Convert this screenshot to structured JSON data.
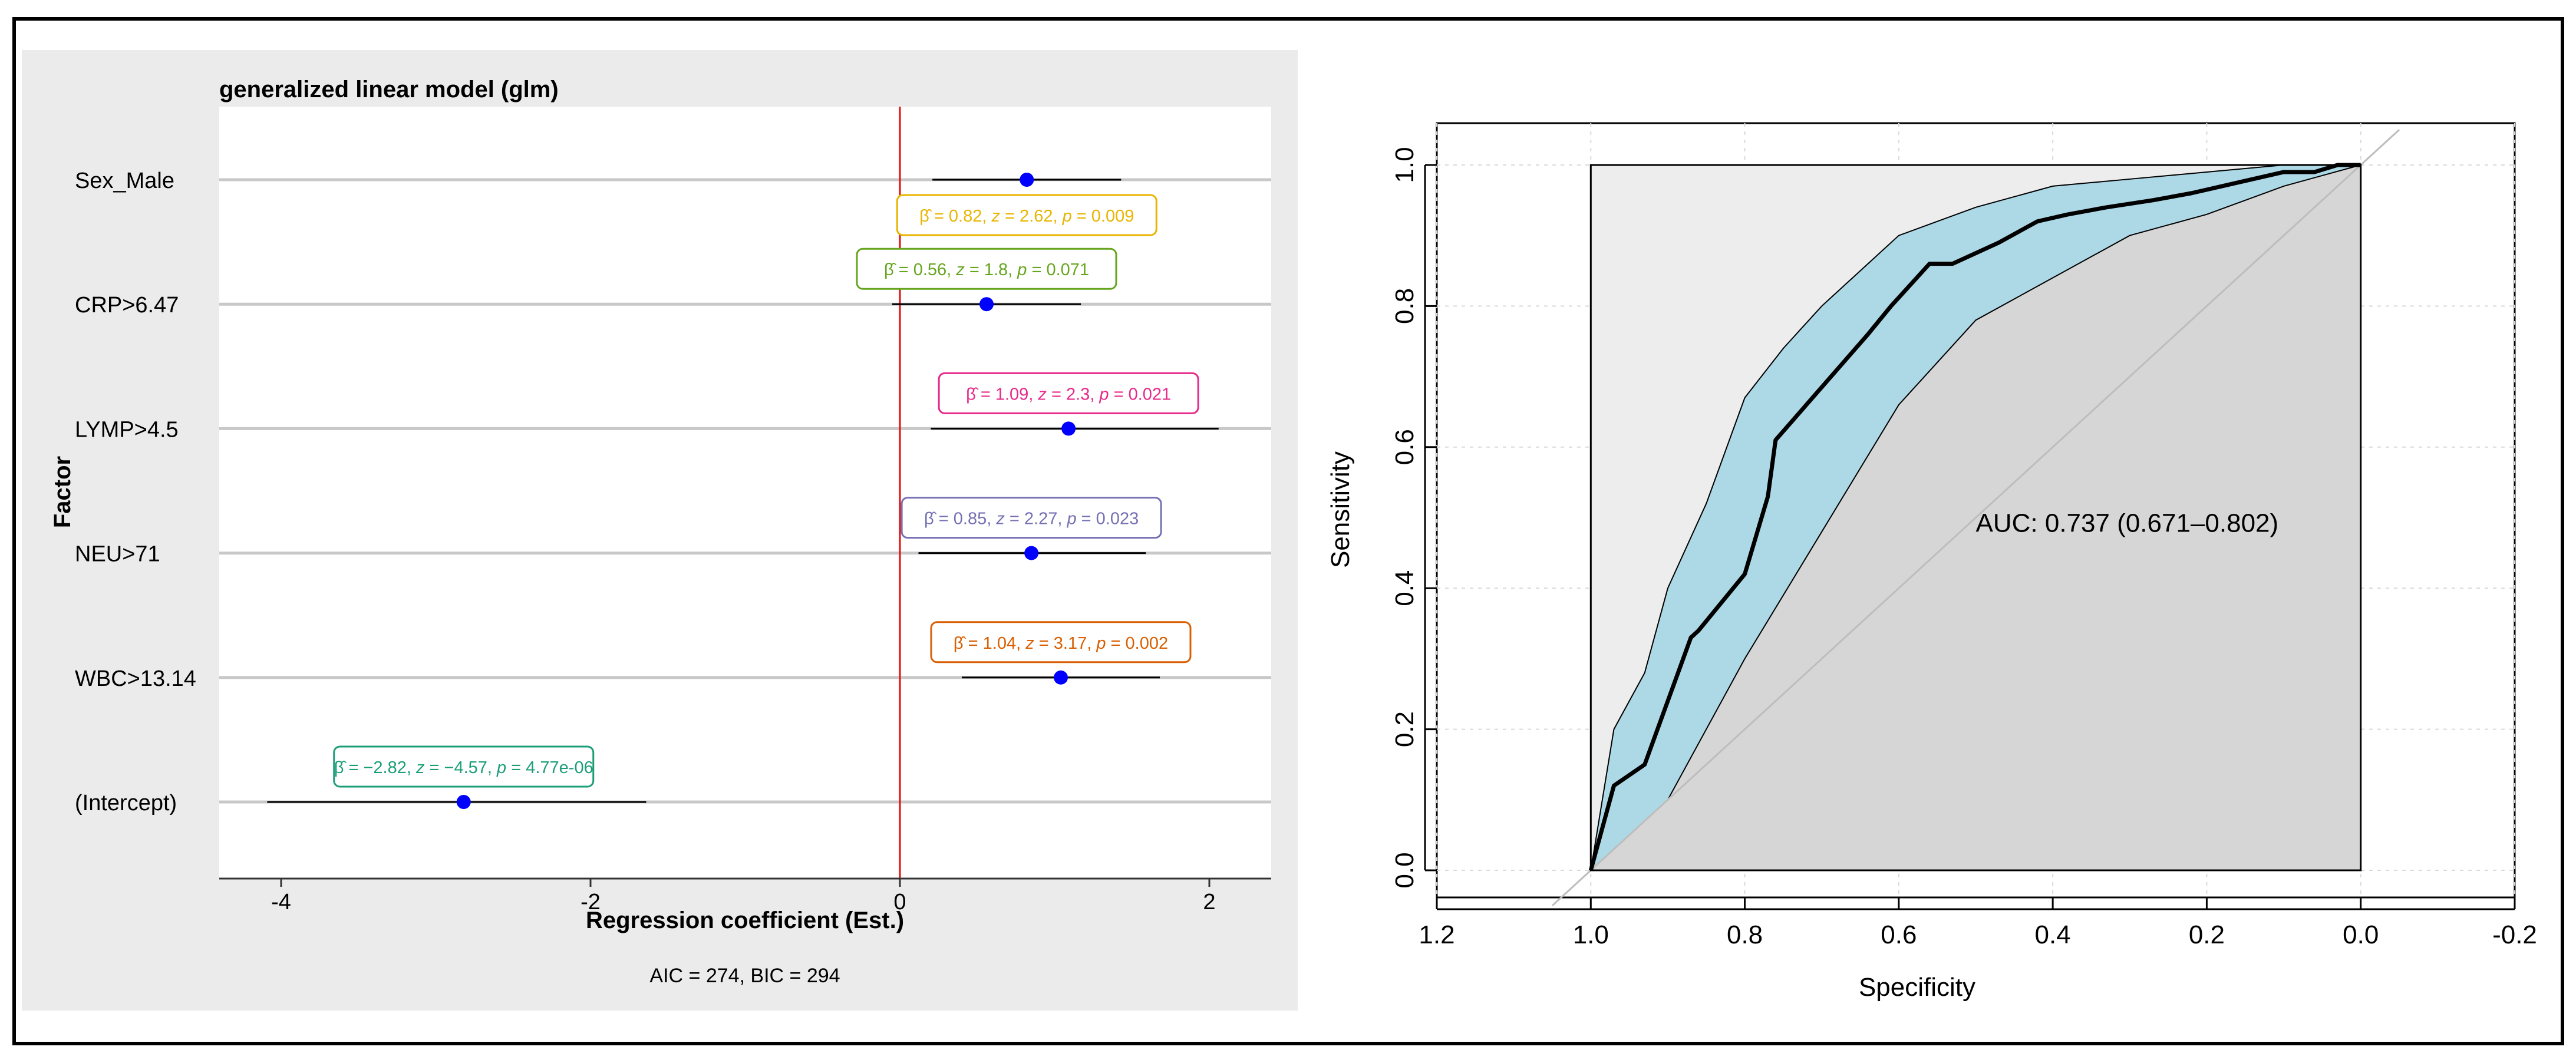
{
  "chart_data": [
    {
      "type": "forest",
      "title": "generalized linear model (glm)",
      "xlabel": "Regression coefficient (Est.)",
      "ylabel": "Factor",
      "caption": "AIC = 274, BIC = 294",
      "xlim": [
        -4.4,
        2.4
      ],
      "xticks": [
        -4,
        -2,
        0,
        2
      ],
      "xtick_labels": [
        "-4",
        "-2",
        "0",
        "2"
      ],
      "reference_line": 0,
      "terms": [
        {
          "label": "Sex_Male",
          "estimate": 0.82,
          "ci_low": 0.21,
          "ci_high": 1.43,
          "beta": "0.82",
          "z": "2.62",
          "p": "0.009",
          "color": "#e8b500",
          "label_pos": "below"
        },
        {
          "label": "CRP>6.47",
          "estimate": 0.56,
          "ci_low": -0.05,
          "ci_high": 1.17,
          "beta": "0.56",
          "z": "1.8",
          "p": "0.071",
          "color": "#66a61e",
          "label_pos": "above"
        },
        {
          "label": "LYMP>4.5",
          "estimate": 1.09,
          "ci_low": 0.2,
          "ci_high": 2.06,
          "beta": "1.09",
          "z": "2.3",
          "p": "0.021",
          "color": "#e7298a",
          "label_pos": "above"
        },
        {
          "label": "NEU>71",
          "estimate": 0.85,
          "ci_low": 0.12,
          "ci_high": 1.59,
          "beta": "0.85",
          "z": "2.27",
          "p": "0.023",
          "color": "#7570b3",
          "label_pos": "above"
        },
        {
          "label": "WBC>13.14",
          "estimate": 1.04,
          "ci_low": 0.4,
          "ci_high": 1.68,
          "beta": "1.04",
          "z": "3.17",
          "p": "0.002",
          "color": "#d95f02",
          "label_pos": "above"
        },
        {
          "label": "(Intercept)",
          "estimate": -2.82,
          "ci_low": -4.09,
          "ci_high": -1.64,
          "beta": "−2.82",
          "z": "−4.57",
          "p": "4.77e-06",
          "color": "#1b9e77",
          "label_pos": "above"
        }
      ],
      "beta_symbol": "β̂",
      "point_color": "#0000ff"
    },
    {
      "type": "roc",
      "xlabel": "Specificity",
      "ylabel": "Sensitivity",
      "xlim": [
        1.2,
        -0.2
      ],
      "ylim": [
        0,
        1
      ],
      "xticks": [
        1.2,
        1.0,
        0.8,
        0.6,
        0.4,
        0.2,
        0.0,
        -0.2
      ],
      "xtick_labels": [
        "1.2",
        "1.0",
        "0.8",
        "0.6",
        "0.4",
        "0.2",
        "0.0",
        "-0.2"
      ],
      "yticks": [
        0.0,
        0.2,
        0.4,
        0.6,
        0.8,
        1.0
      ],
      "ytick_labels": [
        "0.0",
        "0.2",
        "0.4",
        "0.6",
        "0.8",
        "1.0"
      ],
      "auc_text": "AUC: 0.737 (0.671–0.802)",
      "ci_fill_color": "#add8e6",
      "curve": {
        "specificity": [
          1.0,
          0.97,
          0.93,
          0.9,
          0.87,
          0.86,
          0.83,
          0.8,
          0.77,
          0.76,
          0.72,
          0.68,
          0.64,
          0.61,
          0.56,
          0.53,
          0.47,
          0.42,
          0.38,
          0.33,
          0.27,
          0.22,
          0.18,
          0.14,
          0.1,
          0.06,
          0.03,
          0.0
        ],
        "sensitivity": [
          0.0,
          0.12,
          0.15,
          0.24,
          0.33,
          0.34,
          0.38,
          0.42,
          0.53,
          0.61,
          0.66,
          0.71,
          0.76,
          0.8,
          0.86,
          0.86,
          0.89,
          0.92,
          0.93,
          0.94,
          0.95,
          0.96,
          0.97,
          0.98,
          0.99,
          0.99,
          1.0,
          1.0
        ]
      },
      "ci_upper": {
        "specificity": [
          1.0,
          0.97,
          0.93,
          0.9,
          0.85,
          0.8,
          0.75,
          0.7,
          0.6,
          0.5,
          0.4,
          0.3,
          0.2,
          0.1,
          0.0
        ],
        "sensitivity": [
          0.0,
          0.2,
          0.28,
          0.4,
          0.52,
          0.67,
          0.74,
          0.8,
          0.9,
          0.94,
          0.97,
          0.98,
          0.99,
          1.0,
          1.0
        ]
      },
      "ci_lower": {
        "specificity": [
          0.0,
          0.1,
          0.2,
          0.3,
          0.4,
          0.5,
          0.6,
          0.7,
          0.8,
          0.9,
          1.0
        ],
        "sensitivity": [
          1.0,
          0.97,
          0.93,
          0.9,
          0.84,
          0.78,
          0.66,
          0.48,
          0.3,
          0.1,
          0.0
        ]
      }
    }
  ]
}
